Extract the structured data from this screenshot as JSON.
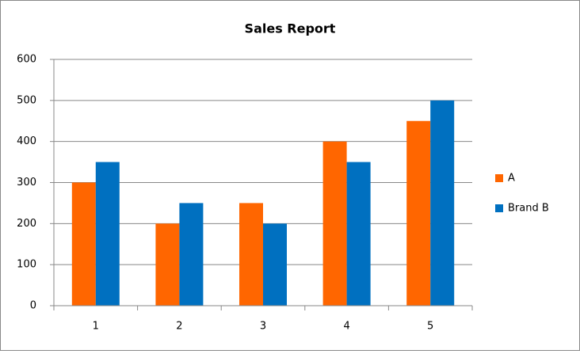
{
  "chart_data": {
    "type": "bar",
    "title": "Sales Report",
    "categories": [
      "1",
      "2",
      "3",
      "4",
      "5"
    ],
    "series": [
      {
        "name": "A",
        "color": "#ff6600",
        "values": [
          300,
          200,
          250,
          400,
          450
        ]
      },
      {
        "name": "Brand B",
        "color": "#0070c0",
        "values": [
          350,
          250,
          200,
          350,
          500
        ]
      }
    ],
    "ylim": [
      0,
      600
    ],
    "yticks": [
      0,
      100,
      200,
      300,
      400,
      500,
      600
    ],
    "grid": true,
    "legend": "right"
  }
}
